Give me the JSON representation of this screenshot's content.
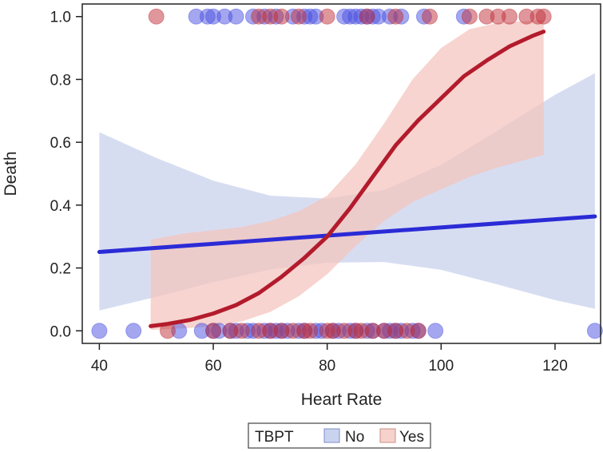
{
  "chart_data": {
    "type": "scatter",
    "title": "",
    "xlabel": "Heart Rate",
    "ylabel": "Death",
    "xlim": [
      37,
      128
    ],
    "ylim": [
      -0.04,
      1.04
    ],
    "xticks": [
      40,
      60,
      80,
      100,
      120
    ],
    "yticks": [
      0.0,
      0.2,
      0.4,
      0.6,
      0.8,
      1.0
    ],
    "xtick_labels": [
      "40",
      "60",
      "80",
      "100",
      "120"
    ],
    "ytick_labels": [
      "0.0",
      "0.2",
      "0.4",
      "0.6",
      "0.8",
      "1.0"
    ],
    "grid": false,
    "legend": {
      "title": "TBPT",
      "position": "bottom-center",
      "entries": [
        {
          "name": "No",
          "color": "#c9d3ee",
          "border": "#7f8fc9"
        },
        {
          "name": "Yes",
          "color": "#f6d2cc",
          "border": "#c98f86"
        }
      ]
    },
    "series": [
      {
        "name": "No",
        "point_color": "#4a4fe0",
        "line_color": "#2b2bd6",
        "band_color": "#c7d0ec",
        "points_y0": [
          40,
          46,
          54,
          58,
          60,
          61,
          63,
          64,
          66,
          67,
          69,
          70,
          71,
          72,
          73,
          75,
          76,
          78,
          79,
          81,
          82,
          84,
          85,
          87,
          88,
          90,
          91,
          92,
          93,
          95,
          96,
          99,
          127
        ],
        "points_y1": [
          57,
          59,
          60,
          62,
          64,
          67,
          69,
          71,
          74,
          76,
          77,
          78,
          83,
          84,
          85,
          86,
          87,
          88,
          89,
          91,
          93,
          97,
          104
        ],
        "fit": {
          "x": [
            40,
            127
          ],
          "y": [
            0.251,
            0.364
          ]
        },
        "ci": {
          "x": [
            40,
            50,
            60,
            70,
            80,
            90,
            100,
            110,
            120,
            127
          ],
          "lower": [
            0.065,
            0.108,
            0.155,
            0.195,
            0.217,
            0.219,
            0.194,
            0.147,
            0.098,
            0.07
          ],
          "upper": [
            0.632,
            0.55,
            0.478,
            0.43,
            0.421,
            0.448,
            0.528,
            0.638,
            0.751,
            0.82
          ]
        }
      },
      {
        "name": "Yes",
        "point_color": "#c0303a",
        "line_color": "#b31b2c",
        "band_color": "#f4c4bc",
        "points_y0": [
          52,
          60,
          63,
          65,
          68,
          70,
          72,
          74,
          76,
          77,
          80,
          81,
          83,
          85,
          86,
          88,
          90,
          92,
          94,
          96
        ],
        "points_y1": [
          50,
          68,
          70,
          72,
          75,
          80,
          87,
          92,
          98,
          105,
          108,
          110,
          112,
          115,
          117,
          118
        ],
        "fit": {
          "x": [
            49,
            52,
            56,
            60,
            64,
            68,
            72,
            76,
            80,
            84,
            88,
            92,
            96,
            100,
            104,
            108,
            112,
            116,
            118
          ],
          "y": [
            0.015,
            0.022,
            0.035,
            0.055,
            0.082,
            0.12,
            0.172,
            0.232,
            0.3,
            0.39,
            0.49,
            0.59,
            0.67,
            0.74,
            0.81,
            0.86,
            0.905,
            0.938,
            0.952
          ]
        },
        "ci": {
          "x": [
            49,
            55,
            60,
            65,
            70,
            75,
            80,
            85,
            90,
            95,
            100,
            105,
            110,
            118
          ],
          "lower": [
            0.003,
            0.008,
            0.015,
            0.03,
            0.06,
            0.11,
            0.18,
            0.27,
            0.35,
            0.41,
            0.45,
            0.49,
            0.52,
            0.56
          ],
          "upper": [
            0.29,
            0.31,
            0.32,
            0.33,
            0.35,
            0.38,
            0.43,
            0.53,
            0.66,
            0.8,
            0.9,
            0.96,
            0.98,
            0.99
          ]
        }
      }
    ]
  }
}
